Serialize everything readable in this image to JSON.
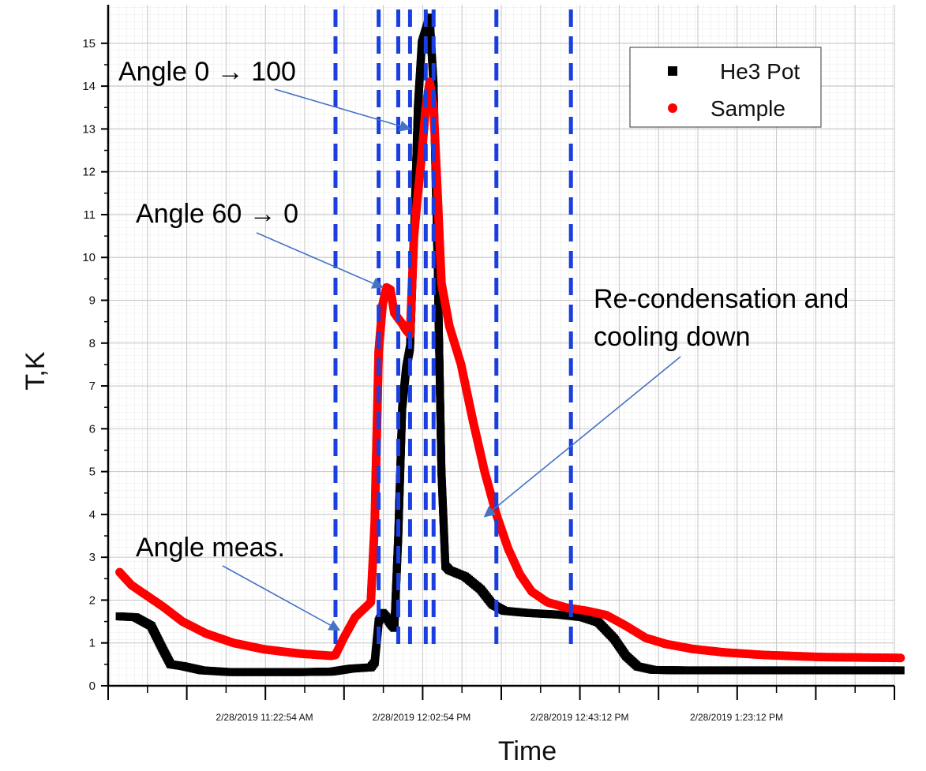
{
  "chart_data": {
    "type": "scatter",
    "title": "",
    "xlabel": "Time",
    "ylabel": "T,K",
    "ylim": [
      0,
      15.9
    ],
    "y_ticks": [
      0,
      1,
      2,
      3,
      4,
      5,
      6,
      7,
      8,
      9,
      10,
      11,
      12,
      13,
      14,
      15
    ],
    "x_tick_labels": [
      "2/28/2019 11:22:54 AM",
      "2/28/2019 12:02:54 PM",
      "2/28/2019 12:43:12 PM",
      "2/28/2019 1:23:12 PM"
    ],
    "grid": true,
    "legend_position": "top-right",
    "series": [
      {
        "name": "He3 Pot",
        "color": "#000000",
        "marker": "square",
        "points": [
          [
            "2/28/2019 10:46:00 AM",
            1.62
          ],
          [
            "2/28/2019 10:50:00 AM",
            1.6
          ],
          [
            "2/28/2019 10:54:00 AM",
            1.4
          ],
          [
            "2/28/2019 10:57:00 AM",
            0.85
          ],
          [
            "2/28/2019 10:59:00 AM",
            0.5
          ],
          [
            "2/28/2019 11:02:00 AM",
            0.46
          ],
          [
            "2/28/2019 11:07:00 AM",
            0.36
          ],
          [
            "2/28/2019 11:14:00 AM",
            0.32
          ],
          [
            "2/28/2019 11:22:54 AM",
            0.32
          ],
          [
            "2/28/2019 11:32:00 AM",
            0.32
          ],
          [
            "2/28/2019 11:40:00 AM",
            0.33
          ],
          [
            "2/28/2019 11:45:00 AM",
            0.4
          ],
          [
            "2/28/2019 11:50:00 AM",
            0.43
          ],
          [
            "2/28/2019 11:51:00 AM",
            0.55
          ],
          [
            "2/28/2019 11:52:00 AM",
            1.5
          ],
          [
            "2/28/2019 11:53:00 AM",
            1.7
          ],
          [
            "2/28/2019 11:54:00 AM",
            1.6
          ],
          [
            "2/28/2019 11:55:00 AM",
            1.45
          ],
          [
            "2/28/2019 11:56:00 AM",
            1.35
          ],
          [
            "2/28/2019 11:57:00 AM",
            3.5
          ],
          [
            "2/28/2019 11:58:00 AM",
            6.5
          ],
          [
            "2/28/2019 11:59:00 AM",
            7.4
          ],
          [
            "2/28/2019 12:00:00 PM",
            7.9
          ],
          [
            "2/28/2019 12:01:00 PM",
            10.5
          ],
          [
            "2/28/2019 12:02:00 PM",
            13.5
          ],
          [
            "2/28/2019 12:03:00 PM",
            15.0
          ],
          [
            "2/28/2019 12:05:00 PM",
            15.6
          ],
          [
            "2/28/2019 12:06:00 PM",
            14.0
          ],
          [
            "2/28/2019 12:07:00 PM",
            10.0
          ],
          [
            "2/28/2019 12:08:00 PM",
            5.0
          ],
          [
            "2/28/2019 12:09:00 PM",
            2.8
          ],
          [
            "2/28/2019 12:10:00 PM",
            2.7
          ],
          [
            "2/28/2019 12:14:00 PM",
            2.55
          ],
          [
            "2/28/2019 12:18:00 PM",
            2.25
          ],
          [
            "2/28/2019 12:21:00 PM",
            1.9
          ],
          [
            "2/28/2019 12:24:00 PM",
            1.75
          ],
          [
            "2/28/2019 12:30:00 PM",
            1.7
          ],
          [
            "2/28/2019 12:38:00 PM",
            1.66
          ],
          [
            "2/28/2019 12:44:00 PM",
            1.6
          ],
          [
            "2/28/2019 12:48:00 PM",
            1.48
          ],
          [
            "2/28/2019 12:52:00 PM",
            1.1
          ],
          [
            "2/28/2019 12:55:00 PM",
            0.7
          ],
          [
            "2/28/2019 12:58:00 PM",
            0.45
          ],
          [
            "2/28/2019 1:02:00 PM",
            0.37
          ],
          [
            "2/28/2019 1:10:00 PM",
            0.36
          ],
          [
            "2/28/2019 1:30:00 PM",
            0.36
          ],
          [
            "2/28/2019 2:05:00 PM",
            0.36
          ]
        ]
      },
      {
        "name": "Sample",
        "color": "#ff0000",
        "marker": "circle",
        "points": [
          [
            "2/28/2019 10:46:00 AM",
            2.65
          ],
          [
            "2/28/2019 10:49:00 AM",
            2.35
          ],
          [
            "2/28/2019 10:53:00 AM",
            2.1
          ],
          [
            "2/28/2019 10:57:00 AM",
            1.85
          ],
          [
            "2/28/2019 11:02:00 AM",
            1.5
          ],
          [
            "2/28/2019 11:08:00 AM",
            1.22
          ],
          [
            "2/28/2019 11:15:00 AM",
            1.0
          ],
          [
            "2/28/2019 11:22:54 AM",
            0.85
          ],
          [
            "2/28/2019 11:32:00 AM",
            0.75
          ],
          [
            "2/28/2019 11:40:00 AM",
            0.7
          ],
          [
            "2/28/2019 11:41:00 AM",
            0.72
          ],
          [
            "2/28/2019 11:43:00 AM",
            1.1
          ],
          [
            "2/28/2019 11:46:00 AM",
            1.6
          ],
          [
            "2/28/2019 11:50:00 AM",
            1.95
          ],
          [
            "2/28/2019 11:51:00 AM",
            3.8
          ],
          [
            "2/28/2019 11:52:00 AM",
            7.8
          ],
          [
            "2/28/2019 11:53:00 AM",
            8.9
          ],
          [
            "2/28/2019 11:54:00 AM",
            9.3
          ],
          [
            "2/28/2019 11:55:00 AM",
            9.25
          ],
          [
            "2/28/2019 11:56:00 AM",
            8.7
          ],
          [
            "2/28/2019 11:58:00 AM",
            8.45
          ],
          [
            "2/28/2019 11:59:00 AM",
            8.3
          ],
          [
            "2/28/2019 12:00:00 PM",
            8.2
          ],
          [
            "2/28/2019 12:01:00 PM",
            10.5
          ],
          [
            "2/28/2019 12:02:00 PM",
            11.5
          ],
          [
            "2/28/2019 12:02:54 PM",
            12.3
          ],
          [
            "2/28/2019 12:04:00 PM",
            13.5
          ],
          [
            "2/28/2019 12:05:00 PM",
            14.1
          ],
          [
            "2/28/2019 12:06:00 PM",
            13.5
          ],
          [
            "2/28/2019 12:07:00 PM",
            11.5
          ],
          [
            "2/28/2019 12:08:00 PM",
            9.4
          ],
          [
            "2/28/2019 12:10:00 PM",
            8.4
          ],
          [
            "2/28/2019 12:13:00 PM",
            7.5
          ],
          [
            "2/28/2019 12:16:00 PM",
            6.2
          ],
          [
            "2/28/2019 12:19:00 PM",
            5.0
          ],
          [
            "2/28/2019 12:22:00 PM",
            4.0
          ],
          [
            "2/28/2019 12:25:00 PM",
            3.2
          ],
          [
            "2/28/2019 12:28:00 PM",
            2.6
          ],
          [
            "2/28/2019 12:31:00 PM",
            2.2
          ],
          [
            "2/28/2019 12:35:00 PM",
            1.95
          ],
          [
            "2/28/2019 12:40:00 PM",
            1.82
          ],
          [
            "2/28/2019 12:45:00 PM",
            1.75
          ],
          [
            "2/28/2019 12:50:00 PM",
            1.65
          ],
          [
            "2/28/2019 12:55:00 PM",
            1.4
          ],
          [
            "2/28/2019 1:00:00 PM",
            1.12
          ],
          [
            "2/28/2019 1:05:00 PM",
            0.98
          ],
          [
            "2/28/2019 1:12:00 PM",
            0.86
          ],
          [
            "2/28/2019 1:20:00 PM",
            0.78
          ],
          [
            "2/28/2019 1:30:00 PM",
            0.72
          ],
          [
            "2/28/2019 1:45:00 PM",
            0.67
          ],
          [
            "2/28/2019 2:05:00 PM",
            0.65
          ]
        ]
      }
    ],
    "vertical_markers": {
      "color": "#1a3ee0",
      "style": "dashed",
      "times": [
        "2/28/2019 11:41:00 AM",
        "2/28/2019 11:52:00 AM",
        "2/28/2019 11:57:00 AM",
        "2/28/2019 12:00:00 PM",
        "2/28/2019 12:04:00 PM",
        "2/28/2019 12:06:00 PM",
        "2/28/2019 12:22:00 PM",
        "2/28/2019 12:41:00 PM"
      ]
    },
    "annotations": [
      {
        "text": "Angle 0 → 100",
        "arrow_to": [
          "2/28/2019 12:00:00 PM",
          13.0
        ]
      },
      {
        "text": "Angle 60 → 0",
        "arrow_to": [
          "2/28/2019 11:53:00 AM",
          9.3
        ]
      },
      {
        "text": "Angle meas.",
        "arrow_to": [
          "2/28/2019 11:42:00 AM",
          1.3
        ]
      },
      {
        "text": "Re-condensation and\ncooling down",
        "arrow_to": [
          "2/28/2019 12:19:00 PM",
          3.95
        ]
      }
    ]
  }
}
